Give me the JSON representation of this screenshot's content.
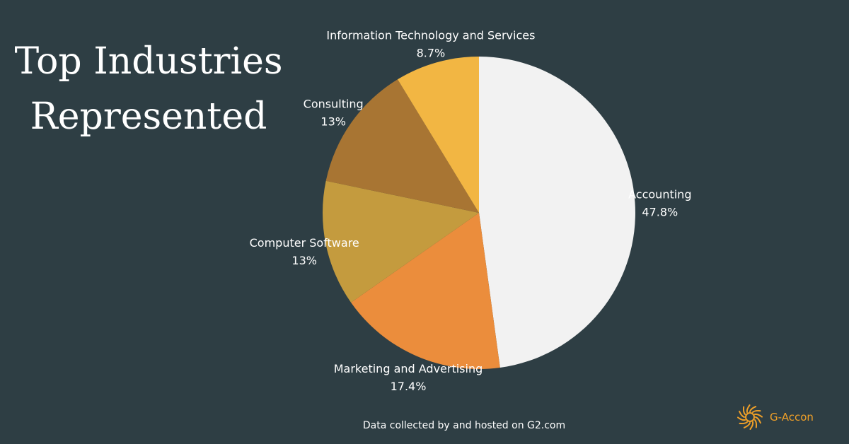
{
  "title_lines": [
    "Top Industries",
    "Represented"
  ],
  "footer": "Data collected by and hosted on G2.com",
  "logo": {
    "text": "G-Accon",
    "icon": "sunburst-logo-icon",
    "color": "#f0a028"
  },
  "chart_data": {
    "type": "pie",
    "title": "Top Industries Represented",
    "slices": [
      {
        "label": "Accounting",
        "value": 47.8,
        "display": "47.8%",
        "color": "#f2f2f2"
      },
      {
        "label": "Marketing and Advertising",
        "value": 17.4,
        "display": "17.4%",
        "color": "#eb8d3c"
      },
      {
        "label": "Computer Software",
        "value": 13,
        "display": "13%",
        "color": "#c49b3e"
      },
      {
        "label": "Consulting",
        "value": 13,
        "display": "13%",
        "color": "#a87533"
      },
      {
        "label": "Information Technology and Services",
        "value": 8.7,
        "display": "8.7%",
        "color": "#f2b643"
      }
    ],
    "start": "12 o'clock",
    "direction": "clockwise",
    "legend": "none"
  }
}
